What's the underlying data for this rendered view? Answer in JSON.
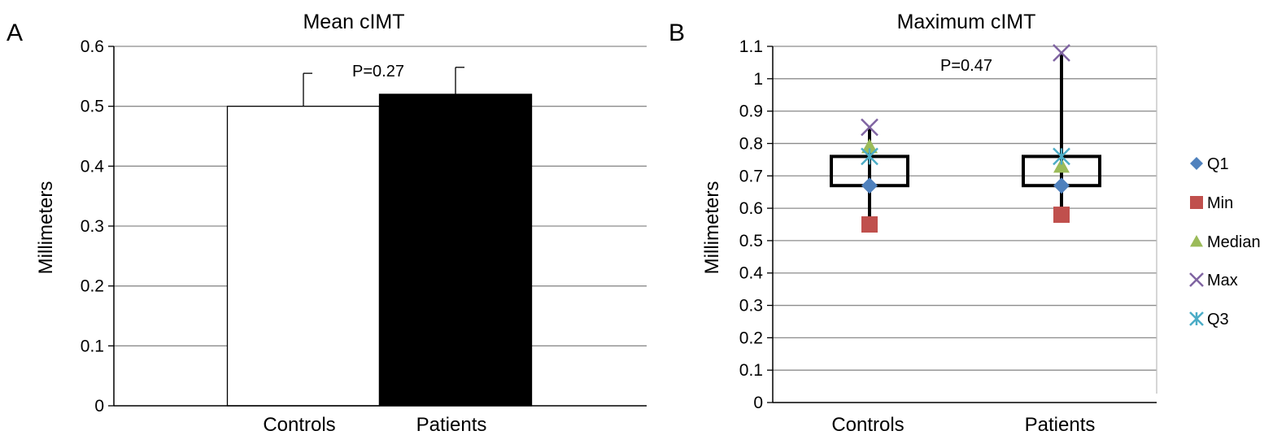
{
  "chart_data": [
    {
      "panel": "A",
      "type": "bar",
      "title": "Mean cIMT",
      "xlabel": "",
      "ylabel": "Millimeters",
      "categories": [
        "Controls",
        "Patients"
      ],
      "values": [
        0.5,
        0.52
      ],
      "error_upper": [
        0.055,
        0.045
      ],
      "bar_colors": [
        "#ffffff",
        "#000000"
      ],
      "ylim": [
        0,
        0.6
      ],
      "yticks": [
        "0",
        "0.1",
        "0.2",
        "0.3",
        "0.4",
        "0.5",
        "0.6"
      ],
      "ytick_values": [
        0,
        0.1,
        0.2,
        0.3,
        0.4,
        0.5,
        0.6
      ],
      "grid": true,
      "annotation": "P=0.27"
    },
    {
      "panel": "B",
      "type": "scatter",
      "title": "Maximum cIMT",
      "xlabel": "",
      "ylabel": "Millimeters",
      "categories": [
        "Controls",
        "Patients"
      ],
      "series": [
        {
          "name": "Q1",
          "values": [
            0.67,
            0.67
          ],
          "color": "#4f81bd",
          "marker": "diamond"
        },
        {
          "name": "Min",
          "values": [
            0.55,
            0.58
          ],
          "color": "#c0504d",
          "marker": "square"
        },
        {
          "name": "Median",
          "values": [
            0.79,
            0.73
          ],
          "color": "#9bbb59",
          "marker": "triangle"
        },
        {
          "name": "Max",
          "values": [
            0.85,
            1.08
          ],
          "color": "#8064a2",
          "marker": "x"
        },
        {
          "name": "Q3",
          "values": [
            0.76,
            0.76
          ],
          "color": "#4bacc6",
          "marker": "star"
        }
      ],
      "ylim": [
        0,
        1.1
      ],
      "yticks": [
        "0",
        "0.1",
        "0.2",
        "0.3",
        "0.4",
        "0.5",
        "0.6",
        "0.7",
        "0.8",
        "0.9",
        "1",
        "1.1"
      ],
      "ytick_values": [
        0,
        0.1,
        0.2,
        0.3,
        0.4,
        0.5,
        0.6,
        0.7,
        0.8,
        0.9,
        1.0,
        1.1
      ],
      "grid": true,
      "legend_position": "right",
      "annotation": "P=0.47"
    }
  ]
}
